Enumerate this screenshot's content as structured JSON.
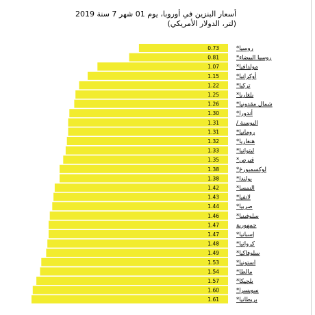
{
  "chart_data": {
    "type": "bar",
    "orientation": "horizontal",
    "title": "أسعار البنزين في أوروبا، يوم 01 شهر 7 سنة 2019",
    "subtitle": "(لتر، الدولار الأمريكي)",
    "bar_color": "#f2ec2e",
    "xlim": [
      0,
      1.7
    ],
    "categories": [
      "روسيا*",
      "روسيا البيضاء*",
      "مولدافيا*",
      "أوكرانيا*",
      "تركيا*",
      "بلغاريا*",
      "شمال مقدونيا*",
      "أندورا*",
      "البوسنة /",
      "رومانيا*",
      "هنغاريا*",
      "ليتوانيا*",
      "قبرص*",
      "لوكسمبورغ*",
      "بولندا*",
      "النمسا*",
      "لاتفيا*",
      "صربيا*",
      "سلوفينيا*",
      "جمهورية",
      "إسبانيا*",
      "كرواتيا*",
      "سلوفاكيا*",
      "استونيا*",
      "مالطا*",
      "بلجيكا*",
      "سويسرا*",
      "بريطانيا*"
    ],
    "values": [
      0.73,
      0.81,
      1.07,
      1.15,
      1.22,
      1.25,
      1.26,
      1.3,
      1.31,
      1.31,
      1.32,
      1.33,
      1.35,
      1.38,
      1.38,
      1.42,
      1.43,
      1.44,
      1.46,
      1.47,
      1.47,
      1.48,
      1.49,
      1.53,
      1.54,
      1.57,
      1.6,
      1.61
    ],
    "value_labels": [
      "0.73",
      "0.81",
      "1.07",
      "1.15",
      "1.22",
      "1.25",
      "1.26",
      "1.30",
      "1.31",
      "1.31",
      "1.32",
      "1.33",
      "1.35",
      "1.38",
      "1.38",
      "1.42",
      "1.43",
      "1.44",
      "1.46",
      "1.47",
      "1.47",
      "1.48",
      "1.49",
      "1.53",
      "1.54",
      "1.57",
      "1.60",
      "1.61"
    ]
  }
}
